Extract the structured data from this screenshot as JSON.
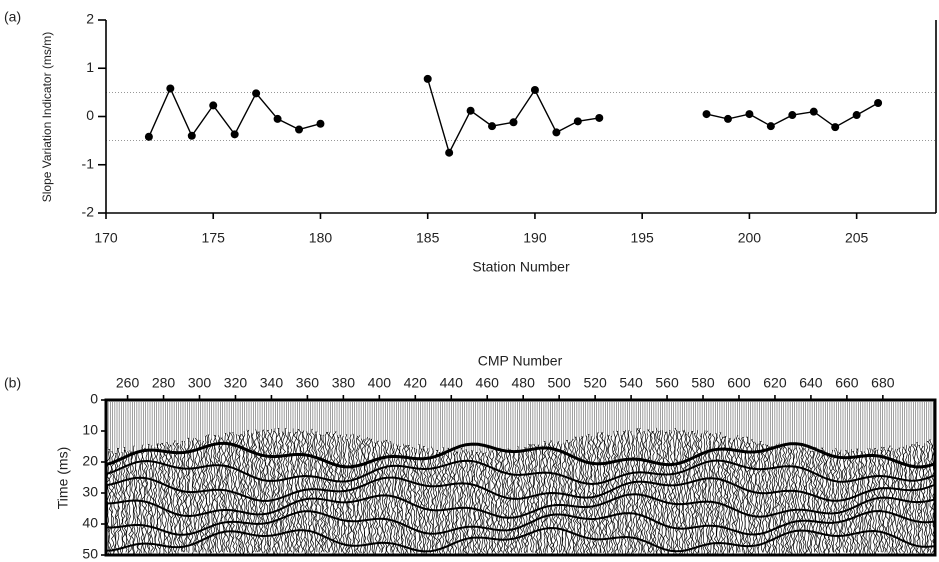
{
  "chart_data": [
    {
      "type": "line",
      "panel_label": "(a)",
      "y_label": "Slope Variation Indicator (ms/m)",
      "x_label": "Station Number",
      "x": [
        172,
        173,
        174,
        175,
        176,
        177,
        178,
        179,
        180,
        181,
        182,
        183,
        184,
        185,
        186,
        187,
        188,
        189,
        190,
        191,
        192,
        193,
        194,
        195,
        196,
        197,
        198,
        199,
        200,
        201,
        202,
        203,
        204,
        205,
        206
      ],
      "values": [
        -0.42,
        0.58,
        -0.4,
        0.23,
        -0.37,
        0.48,
        -0.05,
        -0.27,
        -0.15,
        null,
        null,
        null,
        null,
        0.78,
        -0.75,
        0.12,
        -0.2,
        -0.12,
        0.55,
        -0.33,
        -0.1,
        -0.03,
        null,
        null,
        null,
        null,
        0.05,
        -0.05,
        0.05,
        -0.2,
        0.03,
        0.1,
        -0.22,
        0.03,
        0.28
      ],
      "color": "#000000",
      "xlim": [
        170,
        208.7
      ],
      "xticks": [
        170,
        175,
        180,
        185,
        190,
        195,
        200,
        205
      ],
      "ylim": [
        -2,
        2
      ],
      "yticks": [
        -2,
        -1,
        0,
        1,
        2
      ],
      "reference_lines": [
        0.5,
        -0.5
      ]
    },
    {
      "type": "image",
      "panel_label": "(b)",
      "x_label": "CMP  Number",
      "y_label": "Time (ms)",
      "xlim": [
        248,
        709
      ],
      "xticks": [
        260,
        280,
        300,
        320,
        340,
        360,
        380,
        400,
        420,
        440,
        460,
        480,
        500,
        520,
        540,
        560,
        580,
        600,
        620,
        640,
        660,
        680
      ],
      "ylim": [
        0,
        50
      ],
      "yticks": [
        0,
        10,
        20,
        30,
        40,
        50
      ],
      "y_reversed": true
    }
  ]
}
